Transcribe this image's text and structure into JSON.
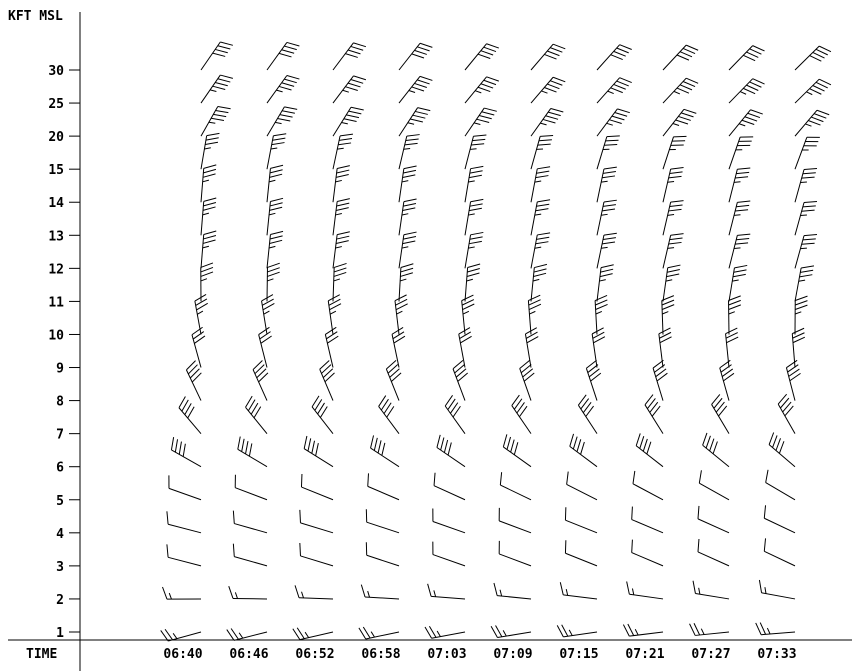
{
  "chart_data": {
    "type": "wind-barb-profile",
    "ylabel": "KFT MSL",
    "xlabel": "TIME",
    "y_ticks": [
      "1",
      "2",
      "3",
      "4",
      "5",
      "6",
      "7",
      "8",
      "9",
      "10",
      "11",
      "12",
      "13",
      "14",
      "15",
      "20",
      "25",
      "30"
    ],
    "x_ticks": [
      "06:40",
      "06:46",
      "06:52",
      "06:58",
      "07:03",
      "07:09",
      "07:15",
      "07:21",
      "07:27",
      "07:33"
    ],
    "levels": [
      {
        "alt": "1",
        "dir": 260,
        "spd": 25
      },
      {
        "alt": "2",
        "dir": 275,
        "spd": 15
      },
      {
        "alt": "3",
        "dir": 290,
        "spd": 10
      },
      {
        "alt": "4",
        "dir": 290,
        "spd": 10
      },
      {
        "alt": "5",
        "dir": 295,
        "spd": 10
      },
      {
        "alt": "6",
        "dir": 305,
        "spd": 40
      },
      {
        "alt": "7",
        "dir": 325,
        "spd": 40
      },
      {
        "alt": "8",
        "dir": 340,
        "spd": 40
      },
      {
        "alt": "9",
        "dir": 350,
        "spd": 30
      },
      {
        "alt": "10",
        "dir": 355,
        "spd": 35
      },
      {
        "alt": "11",
        "dir": 5,
        "spd": 35
      },
      {
        "alt": "12",
        "dir": 10,
        "spd": 35
      },
      {
        "alt": "13",
        "dir": 10,
        "spd": 35
      },
      {
        "alt": "14",
        "dir": 10,
        "spd": 35
      },
      {
        "alt": "15",
        "dir": 15,
        "spd": 35
      },
      {
        "alt": "20",
        "dir": 35,
        "spd": 45
      },
      {
        "alt": "25",
        "dir": 40,
        "spd": 45
      },
      {
        "alt": "30",
        "dir": 40,
        "spd": 40
      }
    ]
  }
}
